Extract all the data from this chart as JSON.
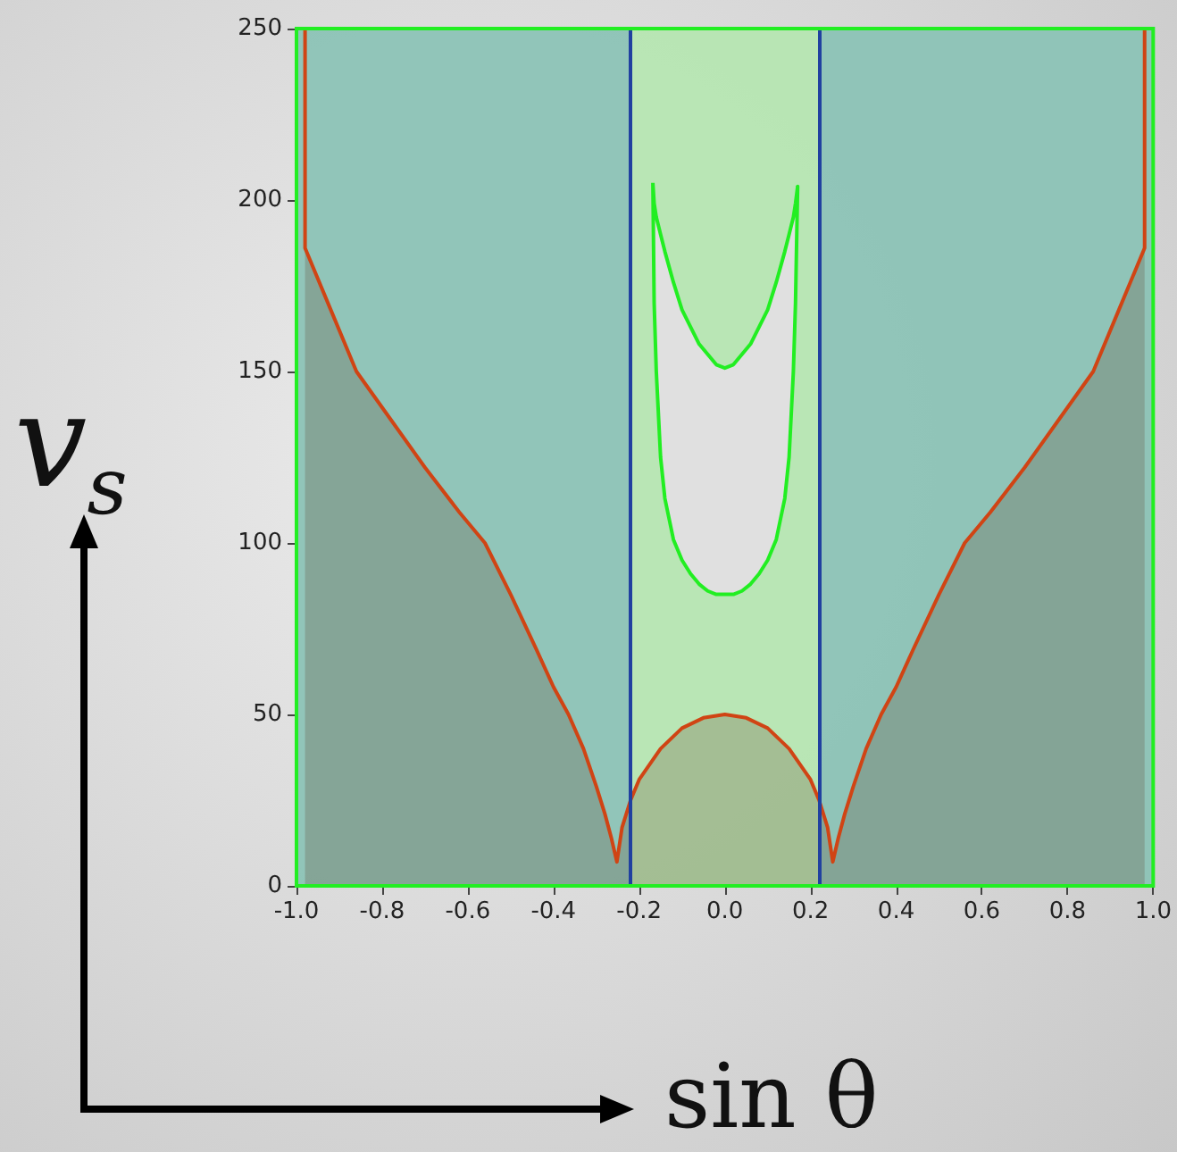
{
  "chart_data": {
    "type": "area",
    "xlabel": "sin θ",
    "ylabel": "v$_{s}$",
    "marker": "none",
    "xlim": [
      -1,
      1
    ],
    "xticks": [
      {
        "value": -1,
        "label": "-1.0"
      },
      {
        "value": -0.8,
        "label": "-0.8"
      },
      {
        "value": -0.6,
        "label": "-0.6"
      },
      {
        "value": -0.4,
        "label": "-0.4"
      },
      {
        "value": -0.2,
        "label": "-0.2"
      },
      {
        "value": 0,
        "label": "0.0"
      },
      {
        "value": 0.2,
        "label": "0.2"
      },
      {
        "value": 0.4,
        "label": "0.4"
      },
      {
        "value": 0.6,
        "label": "0.6"
      },
      {
        "value": 0.8,
        "label": "0.8"
      },
      {
        "value": 1,
        "label": "1.0"
      }
    ],
    "ylim": [
      0,
      250
    ],
    "yticks": [
      0,
      50,
      100,
      150,
      200,
      250
    ],
    "bands": [
      {
        "axis": "x",
        "from": -1,
        "to": -0.22,
        "color": "#8cc3b6"
      },
      {
        "axis": "x",
        "from": -0.22,
        "to": 0.22,
        "color": "#b6e6b2"
      },
      {
        "axis": "x",
        "from": 0.22,
        "to": 1,
        "color": "#8cc3b6"
      }
    ],
    "series": [
      {
        "color": "#d04414",
        "x": [
          -0.98,
          -0.98,
          -0.92,
          -0.86,
          -0.78,
          -0.7,
          -0.62,
          -0.56,
          -0.5,
          -0.44,
          -0.4,
          -0.365,
          -0.33,
          -0.3,
          -0.28,
          -0.265,
          -0.252,
          -0.24,
          -0.22,
          -0.2,
          -0.15,
          -0.1,
          -0.05,
          0,
          0.05,
          0.1,
          0.15,
          0.2,
          0.22,
          0.24,
          0.252,
          0.265,
          0.28,
          0.3,
          0.33,
          0.365,
          0.4,
          0.44,
          0.5,
          0.56,
          0.62,
          0.7,
          0.78,
          0.86,
          0.92,
          0.98,
          0.98
        ],
        "values": [
          250,
          186,
          168,
          150,
          136,
          122,
          109,
          100,
          85,
          69,
          58,
          50,
          40,
          29,
          21,
          14,
          7,
          17,
          25,
          31,
          40,
          46,
          49,
          50,
          49,
          46,
          40,
          31,
          25,
          17,
          7,
          14,
          21,
          29,
          40,
          50,
          58,
          69,
          85,
          100,
          109,
          122,
          136,
          150,
          168,
          186,
          250
        ]
      },
      {
        "color": "#22ee22",
        "x": [
          -0.168,
          -0.165,
          -0.16,
          -0.15,
          -0.14,
          -0.12,
          -0.1,
          -0.08,
          -0.06,
          -0.04,
          -0.02,
          0,
          0.02,
          0.04,
          0.06,
          0.08,
          0.1,
          0.12,
          0.14,
          0.15,
          0.16,
          0.165,
          0.17,
          0.165,
          0.16,
          0.15,
          0.14,
          0.12,
          0.1,
          0.08,
          0.06,
          0.04,
          0.02,
          0,
          -0.02,
          -0.04,
          -0.06,
          -0.08,
          -0.1,
          -0.12,
          -0.14,
          -0.15,
          -0.16,
          -0.165,
          -0.168
        ],
        "values": [
          205,
          170,
          150,
          125,
          113,
          101,
          95,
          91,
          88,
          86,
          85,
          85,
          85,
          86,
          88,
          91,
          95,
          101,
          113,
          125,
          150,
          170,
          204,
          199,
          195,
          190,
          185,
          176,
          168,
          163,
          158,
          155,
          152,
          151,
          152,
          155,
          158,
          163,
          168,
          176,
          185,
          190,
          195,
          199,
          205
        ]
      }
    ],
    "ref_lines": [
      {
        "axis": "x",
        "value": -0.22,
        "color": "#2040a0"
      },
      {
        "axis": "x",
        "value": 0.22,
        "color": "#2040a0"
      }
    ]
  }
}
